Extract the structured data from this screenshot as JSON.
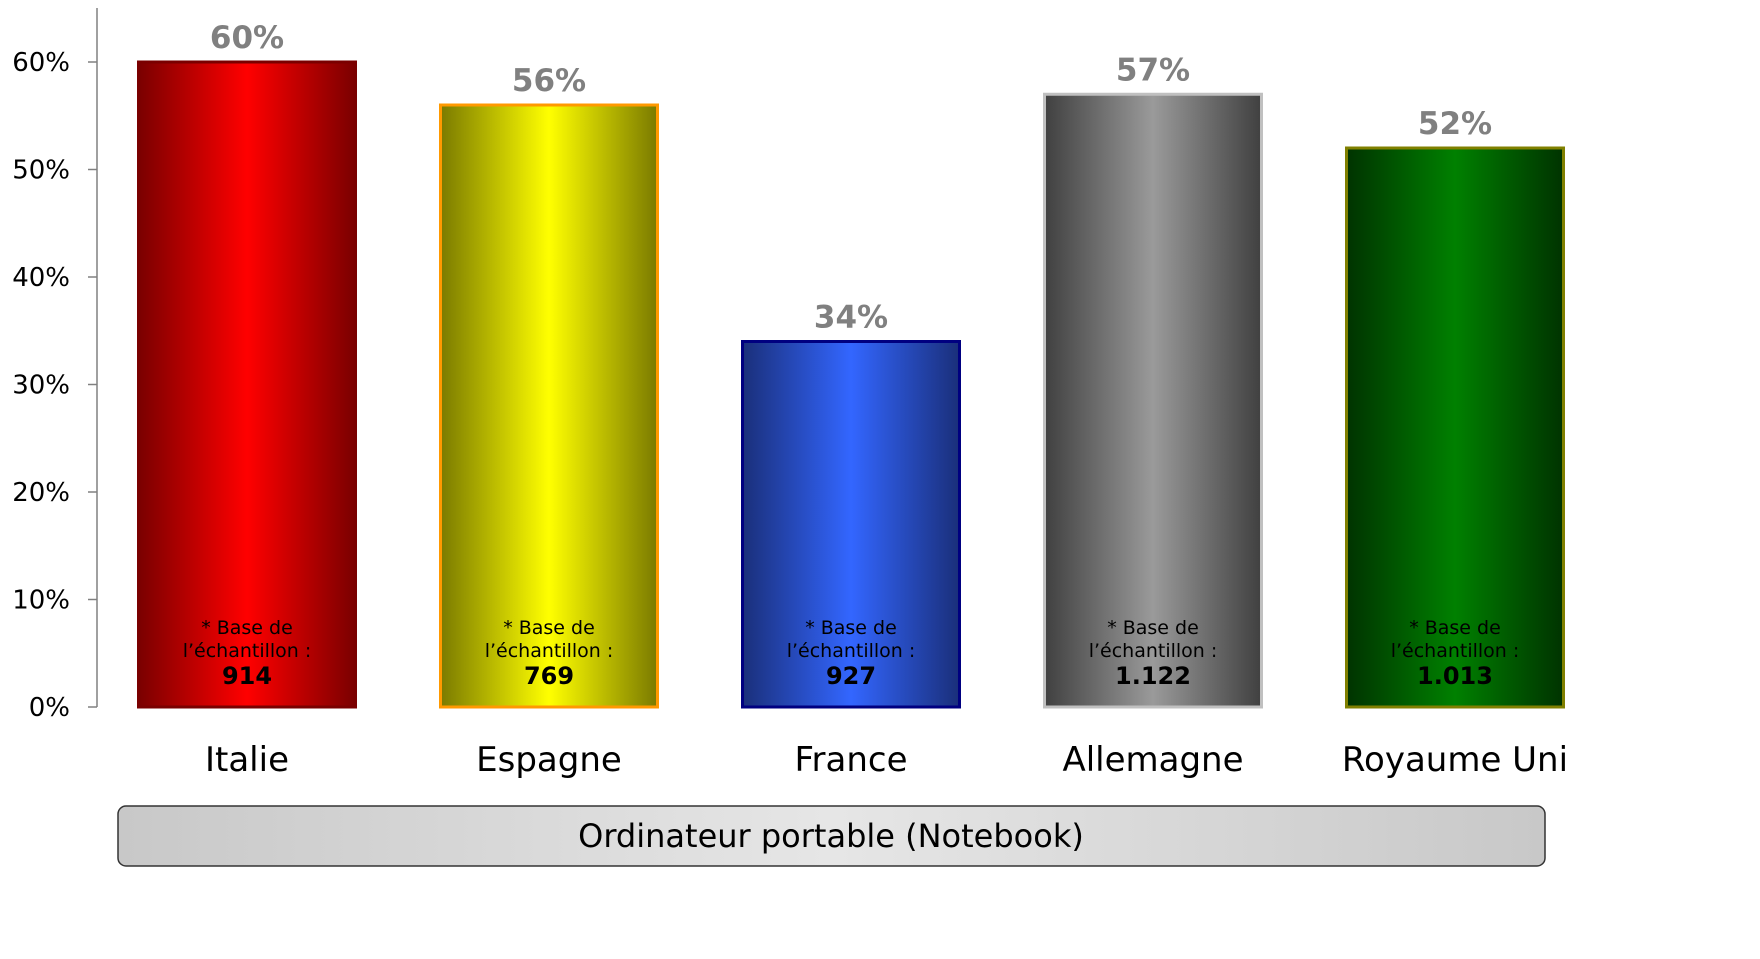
{
  "chart_data": {
    "type": "bar",
    "categories": [
      "Italie",
      "Espagne",
      "France",
      "Allemagne",
      "Royaume Uni"
    ],
    "values": [
      60,
      56,
      34,
      57,
      52
    ],
    "value_labels": [
      "60%",
      "56%",
      "34%",
      "57%",
      "52%"
    ],
    "ylim": [
      0,
      60
    ],
    "y_ticks": [
      0,
      10,
      20,
      30,
      40,
      50,
      60
    ],
    "y_tick_labels": [
      "0%",
      "10%",
      "20%",
      "30%",
      "40%",
      "50%",
      "60%"
    ],
    "grid": false,
    "sample_note_line1": "* Base de",
    "sample_note_line2": "l’échantillon :",
    "sample_sizes": [
      "914",
      "769",
      "927",
      "1.122",
      "1.013"
    ],
    "footer_label": "Ordinateur portable (Notebook)",
    "colors": {
      "Italie": {
        "fill": "#ff0000",
        "edge": "#7a0000",
        "stroke": "#7a0000"
      },
      "Espagne": {
        "fill": "#ffff00",
        "edge": "#7a7a00",
        "stroke": "#ff9900"
      },
      "France": {
        "fill": "#3366ff",
        "edge": "#1a2f7a",
        "stroke": "#000080"
      },
      "Allemagne": {
        "fill": "#9a9a9a",
        "edge": "#404040",
        "stroke": "#c0c0c0"
      },
      "Royaume Uni": {
        "fill": "#008000",
        "edge": "#003300",
        "stroke": "#808000"
      }
    }
  }
}
